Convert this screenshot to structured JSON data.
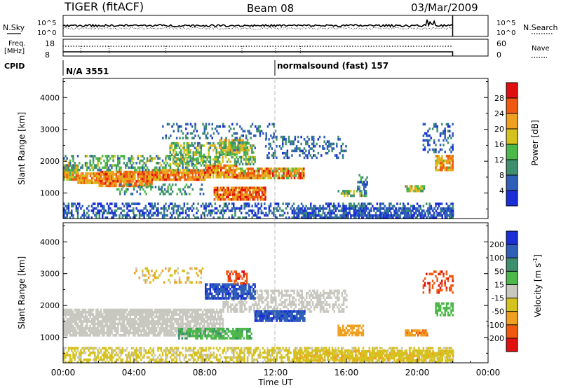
{
  "header": {
    "station": "TIGER (fitACF)",
    "beam": "Beam 08",
    "date": "03/Mar/2009"
  },
  "aux": {
    "nsky_label": "N.Sky",
    "nsky_ticks": [
      "10^5",
      "10^0"
    ],
    "nsearch_label": "N.Search",
    "nsearch_ticks": [
      "10^5",
      "10^0"
    ],
    "freq_label": "Freq.",
    "freq_unit": "[MHz]",
    "freq_ticks": [
      "18",
      "8"
    ],
    "nave_label": "Nave",
    "nave_ticks": [
      "60",
      "0"
    ],
    "cpid_label": "CPID",
    "cpid_entries": [
      {
        "text": "N/A 3551",
        "start_hour": 0
      },
      {
        "text": "normalsound (fast) 157",
        "start_hour": 12
      }
    ]
  },
  "chart_data": [
    {
      "type": "heatmap",
      "name": "power",
      "ylabel": "Slant Range [km]",
      "colorbar_label": "Power [dB]",
      "colorbar_ticks": [
        4,
        8,
        12,
        16,
        20,
        24,
        28
      ],
      "colorbar_range": [
        0,
        32
      ],
      "colors": [
        "#1a2fd6",
        "#2f5fb8",
        "#3f8f6f",
        "#4cb84a",
        "#d6c21e",
        "#f0a020",
        "#f05a10",
        "#e01010"
      ],
      "yticks": [
        1000,
        2000,
        3000,
        4000
      ],
      "ylim": [
        200,
        4600
      ],
      "x_start_hour": 0,
      "regions": [
        {
          "x0": 0.0,
          "x1": 0.8,
          "y0": 1400,
          "y1": 1900,
          "level": 20,
          "var": 8,
          "density": 0.9
        },
        {
          "x0": 0.8,
          "x1": 2.0,
          "y0": 1300,
          "y1": 1650,
          "level": 22,
          "var": 6,
          "density": 0.9
        },
        {
          "x0": 2.0,
          "x1": 5.0,
          "y0": 1250,
          "y1": 1700,
          "level": 24,
          "var": 5,
          "density": 0.92
        },
        {
          "x0": 5.0,
          "x1": 8.0,
          "y0": 1400,
          "y1": 1750,
          "level": 24,
          "var": 6,
          "density": 0.9
        },
        {
          "x0": 8.0,
          "x1": 9.8,
          "y0": 1500,
          "y1": 1900,
          "level": 23,
          "var": 7,
          "density": 0.88
        },
        {
          "x0": 9.8,
          "x1": 13.6,
          "y0": 1500,
          "y1": 1800,
          "level": 22,
          "var": 8,
          "density": 0.85
        },
        {
          "x0": 0.0,
          "x1": 8.0,
          "y0": 1700,
          "y1": 2200,
          "level": 12,
          "var": 6,
          "density": 0.45
        },
        {
          "x0": 3.0,
          "x1": 8.0,
          "y0": 1000,
          "y1": 1300,
          "level": 10,
          "var": 6,
          "density": 0.3
        },
        {
          "x0": 8.5,
          "x1": 11.4,
          "y0": 820,
          "y1": 1200,
          "level": 25,
          "var": 6,
          "density": 0.9
        },
        {
          "x0": 8.8,
          "x1": 10.4,
          "y0": 2200,
          "y1": 2700,
          "level": 18,
          "var": 8,
          "density": 0.75
        },
        {
          "x0": 6.0,
          "x1": 10.8,
          "y0": 1900,
          "y1": 2600,
          "level": 14,
          "var": 7,
          "density": 0.5
        },
        {
          "x0": 5.5,
          "x1": 12.0,
          "y0": 2700,
          "y1": 3200,
          "level": 7,
          "var": 5,
          "density": 0.25
        },
        {
          "x0": 11.4,
          "x1": 16.0,
          "y0": 2100,
          "y1": 2800,
          "level": 7,
          "var": 4,
          "density": 0.3
        },
        {
          "x0": 15.5,
          "x1": 17.1,
          "y0": 900,
          "y1": 1100,
          "level": 13,
          "var": 6,
          "density": 0.6
        },
        {
          "x0": 16.6,
          "x1": 17.2,
          "y0": 1100,
          "y1": 1600,
          "level": 8,
          "var": 5,
          "density": 0.4
        },
        {
          "x0": 19.3,
          "x1": 20.4,
          "y0": 1050,
          "y1": 1250,
          "level": 16,
          "var": 6,
          "density": 0.75
        },
        {
          "x0": 21.0,
          "x1": 22.0,
          "y0": 1700,
          "y1": 2200,
          "level": 21,
          "var": 6,
          "density": 0.8
        },
        {
          "x0": 20.3,
          "x1": 22.0,
          "y0": 2300,
          "y1": 3200,
          "level": 6,
          "var": 4,
          "density": 0.3
        },
        {
          "x0": 0.0,
          "x1": 22.0,
          "y0": 250,
          "y1": 700,
          "level": 6,
          "var": 6,
          "density": 0.45
        },
        {
          "x0": 13.0,
          "x1": 22.0,
          "y0": 250,
          "y1": 550,
          "level": 5,
          "var": 4,
          "density": 0.6
        }
      ]
    },
    {
      "type": "heatmap",
      "name": "velocity",
      "ylabel": "Slant Range [km]",
      "xlabel": "Time UT",
      "colorbar_label": "Velocity [m s^-1]",
      "colorbar_ticks": [
        -200,
        -100,
        -50,
        -15,
        15,
        50,
        100,
        200
      ],
      "colorbar_range": [
        -250,
        250
      ],
      "colors": [
        "#e01010",
        "#f05a10",
        "#f0a020",
        "#d6c21e",
        "#c8c8c0",
        "#4cb84a",
        "#3f8f6f",
        "#2f5fb8",
        "#1a2fd6"
      ],
      "yticks": [
        1000,
        2000,
        3000,
        4000
      ],
      "ylim": [
        200,
        4600
      ],
      "xticks": [
        "00:00",
        "04:00",
        "08:00",
        "12:00",
        "16:00",
        "20:00",
        "00:00"
      ],
      "x_start_hour": 0,
      "regions": [
        {
          "x0": 0.0,
          "x1": 9.0,
          "y0": 1100,
          "y1": 1900,
          "level": 0,
          "var": 10,
          "density": 0.85
        },
        {
          "x0": 9.0,
          "x1": 16.0,
          "y0": 1800,
          "y1": 2500,
          "level": 0,
          "var": 10,
          "density": 0.55
        },
        {
          "x0": 8.0,
          "x1": 10.8,
          "y0": 2200,
          "y1": 2700,
          "level": 190,
          "var": 40,
          "density": 0.8
        },
        {
          "x0": 9.2,
          "x1": 10.4,
          "y0": 2700,
          "y1": 3100,
          "level": -170,
          "var": 60,
          "density": 0.6
        },
        {
          "x0": 10.8,
          "x1": 13.6,
          "y0": 1500,
          "y1": 1850,
          "level": 180,
          "var": 50,
          "density": 0.85
        },
        {
          "x0": 6.5,
          "x1": 10.6,
          "y0": 1000,
          "y1": 1300,
          "level": 40,
          "var": 20,
          "density": 0.7
        },
        {
          "x0": 4.0,
          "x1": 8.0,
          "y0": 2700,
          "y1": 3200,
          "level": -40,
          "var": 40,
          "density": 0.25
        },
        {
          "x0": 15.5,
          "x1": 16.9,
          "y0": 1100,
          "y1": 1400,
          "level": -70,
          "var": 20,
          "density": 0.7
        },
        {
          "x0": 19.3,
          "x1": 20.6,
          "y0": 1050,
          "y1": 1250,
          "level": -90,
          "var": 20,
          "density": 0.8
        },
        {
          "x0": 21.0,
          "x1": 22.0,
          "y0": 1700,
          "y1": 2100,
          "level": 35,
          "var": 15,
          "density": 0.7
        },
        {
          "x0": 20.3,
          "x1": 22.0,
          "y0": 2400,
          "y1": 3100,
          "level": -180,
          "var": 40,
          "density": 0.3
        },
        {
          "x0": 0.0,
          "x1": 22.0,
          "y0": 250,
          "y1": 700,
          "level": -25,
          "var": 20,
          "density": 0.55
        },
        {
          "x0": 13.0,
          "x1": 22.0,
          "y0": 250,
          "y1": 600,
          "level": -40,
          "var": 15,
          "density": 0.7
        }
      ]
    }
  ]
}
